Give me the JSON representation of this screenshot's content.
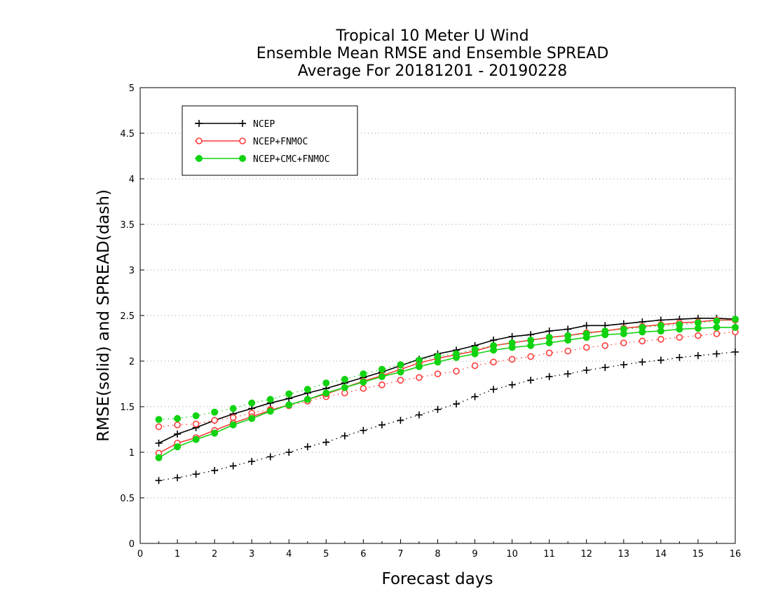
{
  "chart_data": {
    "type": "line",
    "title": [
      "Tropical 10 Meter U Wind",
      "Ensemble Mean RMSE and Ensemble SPREAD",
      "Average For 20181201 - 20190228"
    ],
    "xlabel": "Forecast days",
    "ylabel": "RMSE(solid) and SPREAD(dash)",
    "xlim": [
      0,
      16
    ],
    "ylim": [
      0,
      5
    ],
    "xticks": [
      "0",
      "1",
      "2",
      "3",
      "4",
      "5",
      "6",
      "7",
      "8",
      "9",
      "10",
      "11",
      "12",
      "13",
      "14",
      "15",
      "16"
    ],
    "yticks": [
      "0",
      "0.5",
      "1",
      "1.5",
      "2",
      "2.5",
      "3",
      "3.5",
      "4",
      "4.5",
      "5"
    ],
    "grid": "horizontal-dotted",
    "legend_position": "top-left",
    "x": [
      0.5,
      1,
      1.5,
      2,
      2.5,
      3,
      3.5,
      4,
      4.5,
      5,
      5.5,
      6,
      6.5,
      7,
      7.5,
      8,
      8.5,
      9,
      9.5,
      10,
      10.5,
      11,
      11.5,
      12,
      12.5,
      13,
      13.5,
      14,
      14.5,
      15,
      15.5,
      16
    ],
    "series": [
      {
        "name": "NCEP",
        "color": "#000000",
        "marker": "plus",
        "rmse": [
          1.1,
          1.2,
          1.27,
          1.35,
          1.42,
          1.48,
          1.54,
          1.59,
          1.65,
          1.7,
          1.76,
          1.82,
          1.88,
          1.95,
          2.02,
          2.08,
          2.12,
          2.17,
          2.23,
          2.27,
          2.29,
          2.33,
          2.35,
          2.39,
          2.39,
          2.41,
          2.43,
          2.45,
          2.46,
          2.47,
          2.47,
          2.46
        ],
        "spread": [
          0.69,
          0.72,
          0.76,
          0.8,
          0.85,
          0.9,
          0.95,
          1.0,
          1.06,
          1.11,
          1.18,
          1.24,
          1.3,
          1.35,
          1.41,
          1.47,
          1.53,
          1.61,
          1.69,
          1.74,
          1.79,
          1.83,
          1.86,
          1.9,
          1.93,
          1.96,
          1.99,
          2.01,
          2.04,
          2.06,
          2.08,
          2.1
        ]
      },
      {
        "name": "NCEP+FNMOC",
        "color": "#ff3b3b",
        "marker": "open-circle",
        "rmse": [
          0.99,
          1.1,
          1.16,
          1.24,
          1.32,
          1.39,
          1.46,
          1.52,
          1.58,
          1.64,
          1.71,
          1.78,
          1.84,
          1.91,
          1.98,
          2.03,
          2.07,
          2.11,
          2.17,
          2.2,
          2.23,
          2.26,
          2.28,
          2.31,
          2.33,
          2.36,
          2.38,
          2.4,
          2.42,
          2.43,
          2.45,
          2.45
        ],
        "spread": [
          1.28,
          1.3,
          1.31,
          1.35,
          1.38,
          1.43,
          1.47,
          1.51,
          1.56,
          1.61,
          1.65,
          1.7,
          1.74,
          1.79,
          1.82,
          1.86,
          1.89,
          1.95,
          1.99,
          2.02,
          2.05,
          2.09,
          2.11,
          2.15,
          2.17,
          2.2,
          2.22,
          2.24,
          2.26,
          2.28,
          2.3,
          2.32
        ]
      },
      {
        "name": "NCEP+CMC+FNMOC",
        "color": "#11d311",
        "marker": "filled-circle",
        "rmse": [
          0.94,
          1.06,
          1.14,
          1.21,
          1.3,
          1.37,
          1.45,
          1.52,
          1.58,
          1.65,
          1.71,
          1.77,
          1.83,
          1.88,
          1.94,
          1.99,
          2.04,
          2.08,
          2.12,
          2.15,
          2.17,
          2.2,
          2.23,
          2.26,
          2.29,
          2.3,
          2.32,
          2.33,
          2.35,
          2.36,
          2.37,
          2.37
        ],
        "spread": [
          1.36,
          1.37,
          1.4,
          1.44,
          1.48,
          1.54,
          1.58,
          1.64,
          1.69,
          1.76,
          1.8,
          1.86,
          1.91,
          1.96,
          2.01,
          2.05,
          2.08,
          2.13,
          2.17,
          2.2,
          2.23,
          2.26,
          2.28,
          2.3,
          2.33,
          2.35,
          2.37,
          2.39,
          2.4,
          2.42,
          2.44,
          2.46
        ]
      }
    ]
  }
}
